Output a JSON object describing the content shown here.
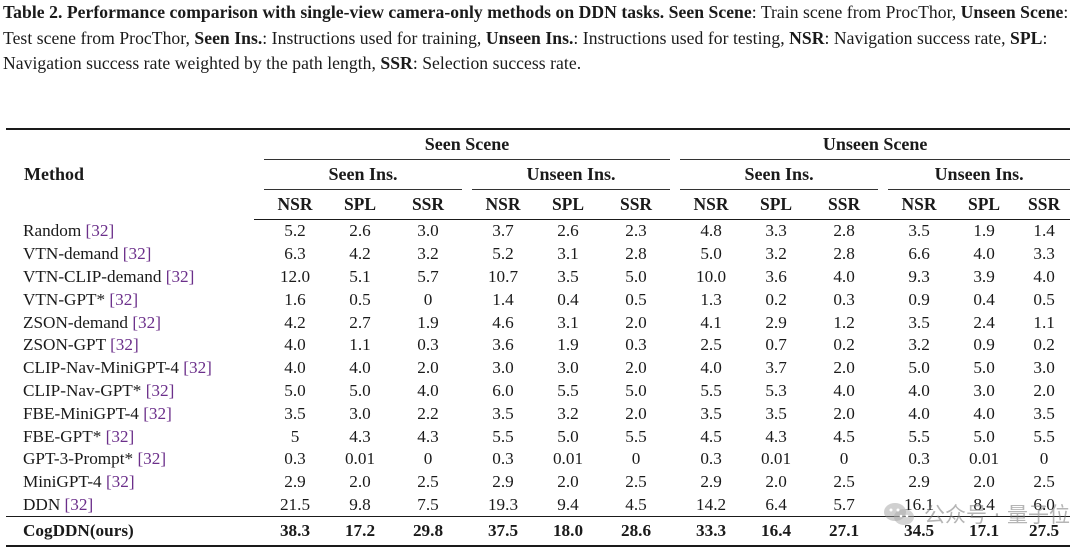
{
  "caption": {
    "label": "Table 2. Performance comparison with single-view camera-only methods on DDN tasks.",
    "t1": "Seen Scene",
    "d1": ": Train scene from ProcThor, ",
    "t2": "Unseen Scene",
    "d2": ": Test scene from ProcThor, ",
    "t3": "Seen Ins.",
    "d3": ": Instructions used for training, ",
    "t4": "Unseen Ins.",
    "d4": ": Instructions used for testing, ",
    "t5": "NSR",
    "d5": ": Navigation success rate, ",
    "t6": "SPL",
    "d6": ": Navigation success rate weighted by the path length, ",
    "t7": "SSR",
    "d7": ": Selection success rate."
  },
  "header": {
    "method": "Method",
    "seen_scene": "Seen Scene",
    "unseen_scene": "Unseen Scene",
    "seen_ins": "Seen Ins.",
    "unseen_ins": "Unseen Ins.",
    "metrics": [
      "NSR",
      "SPL",
      "SSR"
    ]
  },
  "rows": [
    {
      "name": "Random",
      "cite": "[32]",
      "v": [
        "5.2",
        "2.6",
        "3.0",
        "3.7",
        "2.6",
        "2.3",
        "4.8",
        "3.3",
        "2.8",
        "3.5",
        "1.9",
        "1.4"
      ]
    },
    {
      "name": "VTN-demand",
      "cite": "[32]",
      "v": [
        "6.3",
        "4.2",
        "3.2",
        "5.2",
        "3.1",
        "2.8",
        "5.0",
        "3.2",
        "2.8",
        "6.6",
        "4.0",
        "3.3"
      ]
    },
    {
      "name": "VTN-CLIP-demand",
      "cite": "[32]",
      "v": [
        "12.0",
        "5.1",
        "5.7",
        "10.7",
        "3.5",
        "5.0",
        "10.0",
        "3.6",
        "4.0",
        "9.3",
        "3.9",
        "4.0"
      ]
    },
    {
      "name": "VTN-GPT*",
      "cite": "[32]",
      "v": [
        "1.6",
        "0.5",
        "0",
        "1.4",
        "0.4",
        "0.5",
        "1.3",
        "0.2",
        "0.3",
        "0.9",
        "0.4",
        "0.5"
      ]
    },
    {
      "name": "ZSON-demand",
      "cite": "[32]",
      "v": [
        "4.2",
        "2.7",
        "1.9",
        "4.6",
        "3.1",
        "2.0",
        "4.1",
        "2.9",
        "1.2",
        "3.5",
        "2.4",
        "1.1"
      ]
    },
    {
      "name": "ZSON-GPT",
      "cite": "[32]",
      "v": [
        "4.0",
        "1.1",
        "0.3",
        "3.6",
        "1.9",
        "0.3",
        "2.5",
        "0.7",
        "0.2",
        "3.2",
        "0.9",
        "0.2"
      ]
    },
    {
      "name": "CLIP-Nav-MiniGPT-4",
      "cite": "[32]",
      "v": [
        "4.0",
        "4.0",
        "2.0",
        "3.0",
        "3.0",
        "2.0",
        "4.0",
        "3.7",
        "2.0",
        "5.0",
        "5.0",
        "3.0"
      ]
    },
    {
      "name": "CLIP-Nav-GPT*",
      "cite": "[32]",
      "v": [
        "5.0",
        "5.0",
        "4.0",
        "6.0",
        "5.5",
        "5.0",
        "5.5",
        "5.3",
        "4.0",
        "4.0",
        "3.0",
        "2.0"
      ]
    },
    {
      "name": "FBE-MiniGPT-4",
      "cite": "[32]",
      "v": [
        "3.5",
        "3.0",
        "2.2",
        "3.5",
        "3.2",
        "2.0",
        "3.5",
        "3.5",
        "2.0",
        "4.0",
        "4.0",
        "3.5"
      ]
    },
    {
      "name": "FBE-GPT*",
      "cite": "[32]",
      "v": [
        "5",
        "4.3",
        "4.3",
        "5.5",
        "5.0",
        "5.5",
        "4.5",
        "4.3",
        "4.5",
        "5.5",
        "5.0",
        "5.5"
      ]
    },
    {
      "name": "GPT-3-Prompt*",
      "cite": "[32]",
      "v": [
        "0.3",
        "0.01",
        "0",
        "0.3",
        "0.01",
        "0",
        "0.3",
        "0.01",
        "0",
        "0.3",
        "0.01",
        "0"
      ]
    },
    {
      "name": "MiniGPT-4",
      "cite": "[32]",
      "v": [
        "2.9",
        "2.0",
        "2.5",
        "2.9",
        "2.0",
        "2.5",
        "2.9",
        "2.0",
        "2.5",
        "2.9",
        "2.0",
        "2.5"
      ]
    },
    {
      "name": "DDN",
      "cite": "[32]",
      "v": [
        "21.5",
        "9.8",
        "7.5",
        "19.3",
        "9.4",
        "4.5",
        "14.2",
        "6.4",
        "5.7",
        "16.1",
        "8.4",
        "6.0"
      ]
    }
  ],
  "ours": {
    "name": "CogDDN(ours)",
    "v": [
      "38.3",
      "17.2",
      "29.8",
      "37.5",
      "18.0",
      "28.6",
      "33.3",
      "16.4",
      "27.1",
      "34.5",
      "17.1",
      "27.5"
    ]
  },
  "watermark": {
    "text": "公众号 · 量子位",
    "icon": "wechat-icon"
  }
}
